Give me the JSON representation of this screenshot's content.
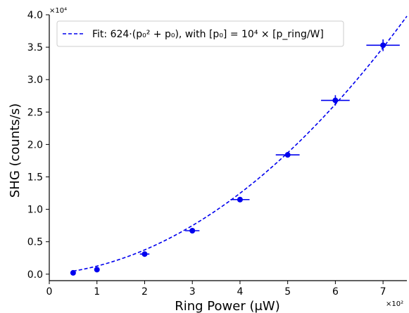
{
  "chart_data": {
    "type": "scatter",
    "title": "",
    "xlabel": "Ring Power (μW)",
    "ylabel": "SHG (counts/s)",
    "xlim": [
      0,
      7.5
    ],
    "ylim": [
      -0.1,
      4.0
    ],
    "x_multiplier": "×10²",
    "y_multiplier": "×10⁴",
    "x_ticks": [
      0,
      1,
      2,
      3,
      4,
      5,
      6,
      7
    ],
    "y_ticks": [
      0.0,
      0.5,
      1.0,
      1.5,
      2.0,
      2.5,
      3.0,
      3.5,
      4.0
    ],
    "x_tick_labels": [
      "0",
      "1",
      "2",
      "3",
      "4",
      "5",
      "6",
      "7"
    ],
    "y_tick_labels": [
      "0.0",
      "0.5",
      "1.0",
      "1.5",
      "2.0",
      "2.5",
      "3.0",
      "3.5",
      "4.0"
    ],
    "grid": false,
    "legend_position": "top-left",
    "series": [
      {
        "type": "scatter",
        "color": "#0000ee",
        "points": [
          {
            "x": 0.5,
            "y": 0.02,
            "xerr": 0.05,
            "yerr": 0.01
          },
          {
            "x": 1.0,
            "y": 0.07,
            "xerr": 0.05,
            "yerr": 0.01
          },
          {
            "x": 2.0,
            "y": 0.31,
            "xerr": 0.1,
            "yerr": 0.02
          },
          {
            "x": 3.0,
            "y": 0.67,
            "xerr": 0.15,
            "yerr": 0.03
          },
          {
            "x": 4.0,
            "y": 1.15,
            "xerr": 0.2,
            "yerr": 0.03
          },
          {
            "x": 5.0,
            "y": 1.84,
            "xerr": 0.25,
            "yerr": 0.04
          },
          {
            "x": 6.0,
            "y": 2.68,
            "xerr": 0.3,
            "yerr": 0.08
          },
          {
            "x": 7.0,
            "y": 3.53,
            "xerr": 0.35,
            "yerr": 0.09
          }
        ]
      },
      {
        "type": "line",
        "name": "Fit: 624·(p₀² + p₀), with [p₀] = 10⁴ × [p_ring/W]",
        "color": "#0000ee",
        "style": "dashed",
        "equation": "y = 0.0624·(p² + p), p = x/100",
        "x_range": [
          0.5,
          7.5
        ]
      }
    ]
  }
}
